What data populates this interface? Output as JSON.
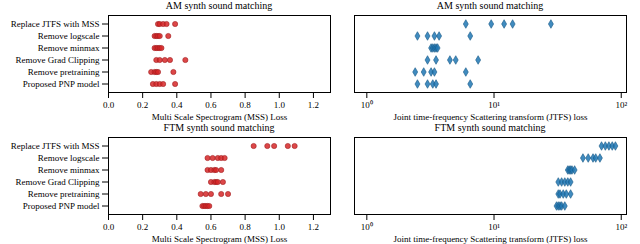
{
  "chart_data": [
    {
      "type": "scatter",
      "title": "AM synth sound matching",
      "x_label": "Multi Scale Spectrogram (MSS) Loss",
      "categories": [
        "Replace JTFS with MSS",
        "Remove logscale",
        "Remove minmax",
        "Remove Grad Clipping",
        "Remove pretraining",
        "Proposed PNP model"
      ],
      "values": [
        [
          0.29,
          0.3,
          0.32,
          0.34,
          0.39
        ],
        [
          0.27,
          0.28,
          0.29,
          0.3,
          0.35
        ],
        [
          0.27,
          0.28,
          0.29,
          0.3,
          0.31
        ],
        [
          0.28,
          0.3,
          0.33,
          0.36,
          0.45
        ],
        [
          0.25,
          0.27,
          0.28,
          0.29,
          0.38
        ],
        [
          0.26,
          0.28,
          0.3,
          0.32,
          0.39
        ]
      ],
      "color": "#d62728",
      "marker": "circle",
      "grid": false,
      "xlim": [
        0,
        1.3
      ],
      "xticks": [
        {
          "value": 0,
          "label": "0.0"
        },
        0.2,
        0.4,
        0.6,
        0.8,
        {
          "value": 1,
          "label": "1.0"
        },
        1.2
      ]
    },
    {
      "type": "scatter",
      "title": "AM synth sound matching",
      "x_label": "Joint time-frequency Scattering transform (JTFS) loss",
      "categories": [
        "Replace JTFS with MSS",
        "Remove logscale",
        "Remove minmax",
        "Remove Grad Clipping",
        "Remove pretraining",
        "Proposed PNP model"
      ],
      "values": [
        [
          6,
          9.5,
          12,
          14,
          28
        ],
        [
          2.5,
          3.0,
          3.4,
          3.7,
          6.5
        ],
        [
          3.2,
          3.3,
          3.4,
          3.5,
          3.6
        ],
        [
          3.0,
          3.5,
          4.5,
          5.0,
          7.5
        ],
        [
          2.4,
          2.8,
          3.2,
          3.4,
          6.0
        ],
        [
          2.5,
          3.0,
          3.3,
          3.5,
          6.5
        ]
      ],
      "color": "#1f77b4",
      "marker": "diamond",
      "grid": false,
      "log": "x",
      "tick_labels": "x",
      "xlim": [
        0.8,
        110
      ],
      "xticks": [
        {
          "value": 1,
          "label": "10⁰"
        },
        {
          "value": 10,
          "label": "10¹"
        },
        {
          "value": 100,
          "label": "10²"
        }
      ]
    },
    {
      "type": "scatter",
      "title": "FTM synth sound matching",
      "x_label": "Multi Scale Spectrogram (MSS) Loss",
      "categories": [
        "Replace JTFS with MSS",
        "Remove logscale",
        "Remove minmax",
        "Remove Grad Clipping",
        "Remove pretraining",
        "Proposed PNP model"
      ],
      "values": [
        [
          0.85,
          0.93,
          0.97,
          1.05,
          1.09
        ],
        [
          0.58,
          0.61,
          0.64,
          0.66,
          0.68
        ],
        [
          0.58,
          0.6,
          0.62,
          0.63,
          0.66
        ],
        [
          0.6,
          0.62,
          0.63,
          0.64,
          0.67
        ],
        [
          0.54,
          0.57,
          0.6,
          0.66,
          0.7
        ],
        [
          0.55,
          0.56,
          0.57,
          0.58,
          0.59
        ]
      ],
      "color": "#d62728",
      "marker": "circle",
      "grid": false,
      "xlim": [
        0,
        1.3
      ],
      "xticks": [
        {
          "value": 0,
          "label": "0.0"
        },
        0.2,
        0.4,
        0.6,
        0.8,
        {
          "value": 1,
          "label": "1.0"
        },
        1.2
      ]
    },
    {
      "type": "scatter",
      "title": "FTM synth sound matching",
      "x_label": "Joint time-frequency Scattering transform (JTFS) loss",
      "categories": [
        "Replace JTFS with MSS",
        "Remove logscale",
        "Remove minmax",
        "Remove Grad Clipping",
        "Remove pretraining",
        "Proposed PNP model"
      ],
      "values": [
        [
          70,
          75,
          80,
          85,
          90
        ],
        [
          50,
          55,
          60,
          63,
          68
        ],
        [
          38,
          39,
          40,
          41,
          43
        ],
        [
          32,
          34,
          36,
          38,
          40
        ],
        [
          32,
          33,
          35,
          37,
          40
        ],
        [
          31,
          32,
          33,
          34,
          36
        ]
      ],
      "color": "#1f77b4",
      "marker": "diamond",
      "grid": false,
      "log": "x",
      "tick_labels": "x",
      "xlim": [
        0.8,
        110
      ],
      "xticks": [
        {
          "value": 1,
          "label": "10⁰"
        },
        {
          "value": 10,
          "label": "10¹"
        },
        {
          "value": 100,
          "label": "10²"
        }
      ]
    }
  ]
}
